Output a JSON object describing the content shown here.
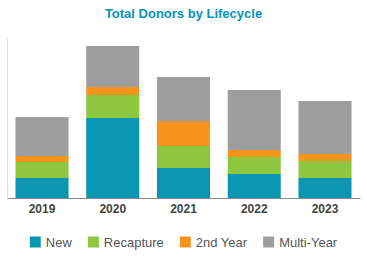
{
  "chart_data": {
    "type": "bar",
    "title": "Total Donors by Lifecycle",
    "categories": [
      "2019",
      "2020",
      "2021",
      "2022",
      "2023"
    ],
    "series": [
      {
        "name": "New",
        "color": "#0a96b0",
        "values": [
          20,
          80,
          30,
          24,
          20
        ]
      },
      {
        "name": "Recapture",
        "color": "#8dc63f",
        "values": [
          16,
          23,
          22,
          17,
          17
        ]
      },
      {
        "name": "2nd Year",
        "color": "#f7941d",
        "values": [
          6,
          8,
          25,
          7,
          7
        ]
      },
      {
        "name": "Multi-Year",
        "color": "#9e9e9e",
        "values": [
          39,
          41,
          44,
          60,
          53
        ]
      }
    ],
    "stacked": true,
    "ylim": [
      0,
      160
    ],
    "tick_labels": "x",
    "legend": "bottom"
  }
}
